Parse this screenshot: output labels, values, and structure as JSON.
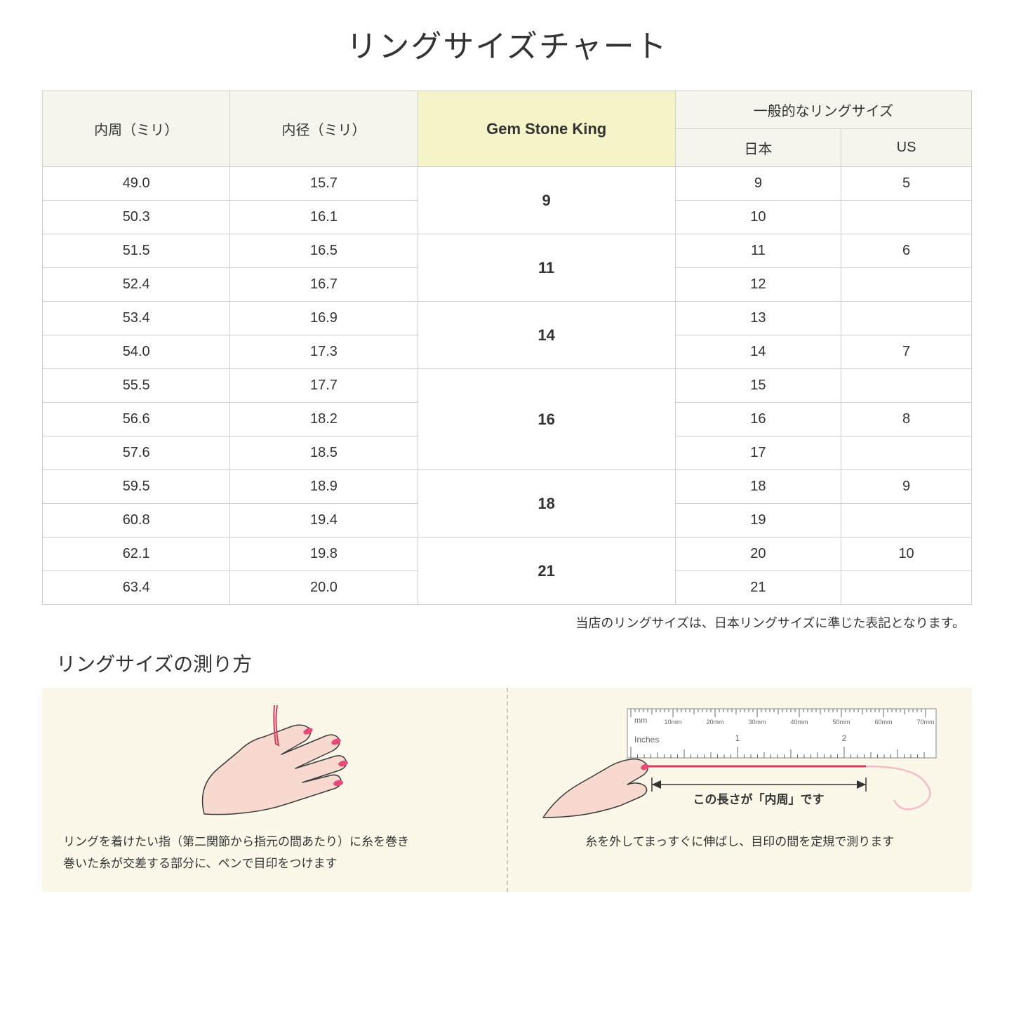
{
  "title": "リングサイズチャート",
  "headers": {
    "circumference": "内周（ミリ）",
    "diameter": "内径（ミリ）",
    "gsk": "Gem Stone King",
    "common": "一般的なリングサイズ",
    "japan": "日本",
    "us": "US"
  },
  "rows": [
    {
      "circ": "49.0",
      "dia": "15.7",
      "jp": "9",
      "us": "5"
    },
    {
      "circ": "50.3",
      "dia": "16.1",
      "jp": "10",
      "us": ""
    },
    {
      "circ": "51.5",
      "dia": "16.5",
      "jp": "11",
      "us": "6"
    },
    {
      "circ": "52.4",
      "dia": "16.7",
      "jp": "12",
      "us": ""
    },
    {
      "circ": "53.4",
      "dia": "16.9",
      "jp": "13",
      "us": ""
    },
    {
      "circ": "54.0",
      "dia": "17.3",
      "jp": "14",
      "us": "7"
    },
    {
      "circ": "55.5",
      "dia": "17.7",
      "jp": "15",
      "us": ""
    },
    {
      "circ": "56.6",
      "dia": "18.2",
      "jp": "16",
      "us": "8"
    },
    {
      "circ": "57.6",
      "dia": "18.5",
      "jp": "17",
      "us": ""
    },
    {
      "circ": "59.5",
      "dia": "18.9",
      "jp": "18",
      "us": "9"
    },
    {
      "circ": "60.8",
      "dia": "19.4",
      "jp": "19",
      "us": ""
    },
    {
      "circ": "62.1",
      "dia": "19.8",
      "jp": "20",
      "us": "10"
    },
    {
      "circ": "63.4",
      "dia": "20.0",
      "jp": "21",
      "us": ""
    }
  ],
  "gsk_groups": [
    {
      "label": "9",
      "span": 2
    },
    {
      "label": "11",
      "span": 2
    },
    {
      "label": "14",
      "span": 2
    },
    {
      "label": "16",
      "span": 3
    },
    {
      "label": "18",
      "span": 2
    },
    {
      "label": "21",
      "span": 2
    }
  ],
  "note": "当店のリングサイズは、日本リングサイズに準じた表記となります。",
  "subtitle": "リングサイズの測り方",
  "step1_line1": "リングを着けたい指（第二関節から指元の間あたり）に糸を巻き",
  "step1_line2": "巻いた糸が交差する部分に、ペンで目印をつけます",
  "step2_label": "この長さが「内周」です",
  "step2_text": "糸を外してまっすぐに伸ばし、目印の間を定規で測ります",
  "ruler": {
    "mm_label": "mm",
    "inch_label": "Inches",
    "mm_marks": [
      "10mm",
      "20mm",
      "30mm",
      "40mm",
      "50mm",
      "60mm",
      "70mm"
    ],
    "inch_marks": [
      "1",
      "2"
    ]
  },
  "colors": {
    "header_bg": "#f5f5ed",
    "highlight_bg": "#f5f3c8",
    "border": "#d0d0c8",
    "diagram_bg": "#fbf8ea",
    "hand_fill": "#f7d9cf",
    "hand_stroke": "#3a3a3a",
    "nail": "#e84a7a",
    "thread": "#d43b5f"
  }
}
